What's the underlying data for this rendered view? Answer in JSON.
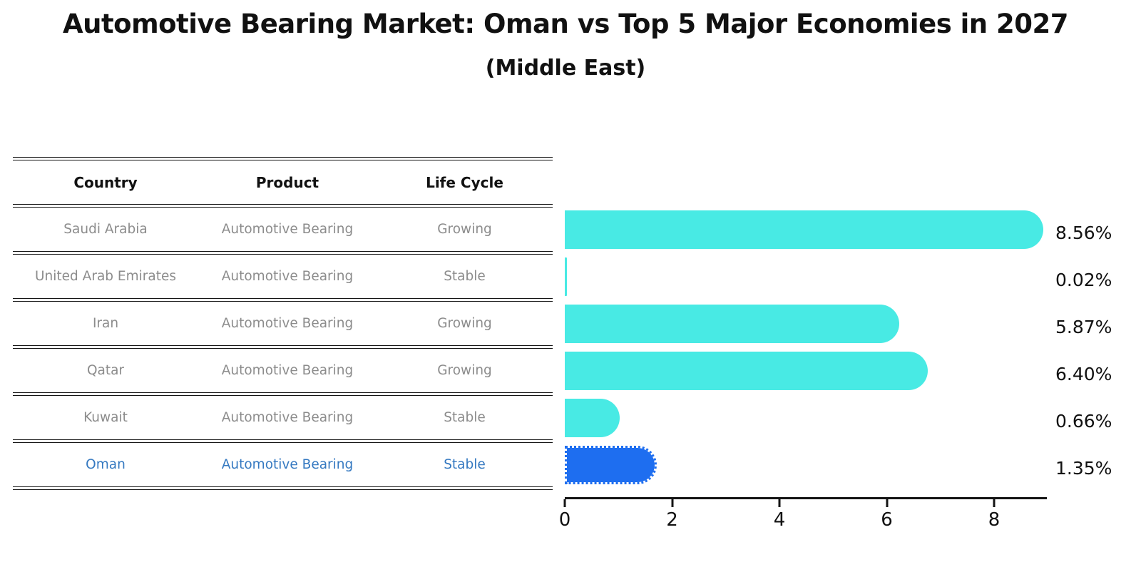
{
  "title": "Automotive Bearing Market: Oman vs Top 5 Major Economies in 2027",
  "subtitle": "(Middle East)",
  "table": {
    "headers": [
      "Country",
      "Product",
      "Life Cycle"
    ],
    "rows": [
      {
        "country": "Saudi Arabia",
        "product": "Automotive Bearing",
        "life_cycle": "Growing",
        "highlight": false
      },
      {
        "country": "United Arab Emirates",
        "product": "Automotive Bearing",
        "life_cycle": "Stable",
        "highlight": false
      },
      {
        "country": "Iran",
        "product": "Automotive Bearing",
        "life_cycle": "Growing",
        "highlight": false
      },
      {
        "country": "Qatar",
        "product": "Automotive Bearing",
        "life_cycle": "Growing",
        "highlight": false
      },
      {
        "country": "Kuwait",
        "product": "Automotive Bearing",
        "life_cycle": "Stable",
        "highlight": false
      },
      {
        "country": "Oman",
        "product": "Automotive Bearing",
        "life_cycle": "Stable",
        "highlight": true
      }
    ]
  },
  "chart_data": {
    "type": "bar",
    "orientation": "horizontal",
    "title": "Automotive Bearing Market: Oman vs Top 5 Major Economies in 2027",
    "subtitle": "(Middle East)",
    "categories": [
      "Saudi Arabia",
      "United Arab Emirates",
      "Iran",
      "Qatar",
      "Kuwait",
      "Oman"
    ],
    "values": [
      8.56,
      0.02,
      5.87,
      6.4,
      0.66,
      1.35
    ],
    "value_labels": [
      "8.56%",
      "0.02%",
      "5.87%",
      "6.40%",
      "0.66%",
      "1.35%"
    ],
    "xlabel": "",
    "ylabel": "",
    "xlim": [
      0,
      9
    ],
    "xticks": [
      0,
      2,
      4,
      6,
      8
    ],
    "xtick_labels": [
      "0",
      "2",
      "4",
      "6",
      "8"
    ],
    "grid": false,
    "legend": "none",
    "highlight_index": 5,
    "bar_color": "#48EAE4",
    "highlight_bar_color": "#1E6EF0",
    "highlight_text_color": "#3579C1",
    "label_color": "#111111",
    "table_text_color": "#8c8c8c"
  }
}
